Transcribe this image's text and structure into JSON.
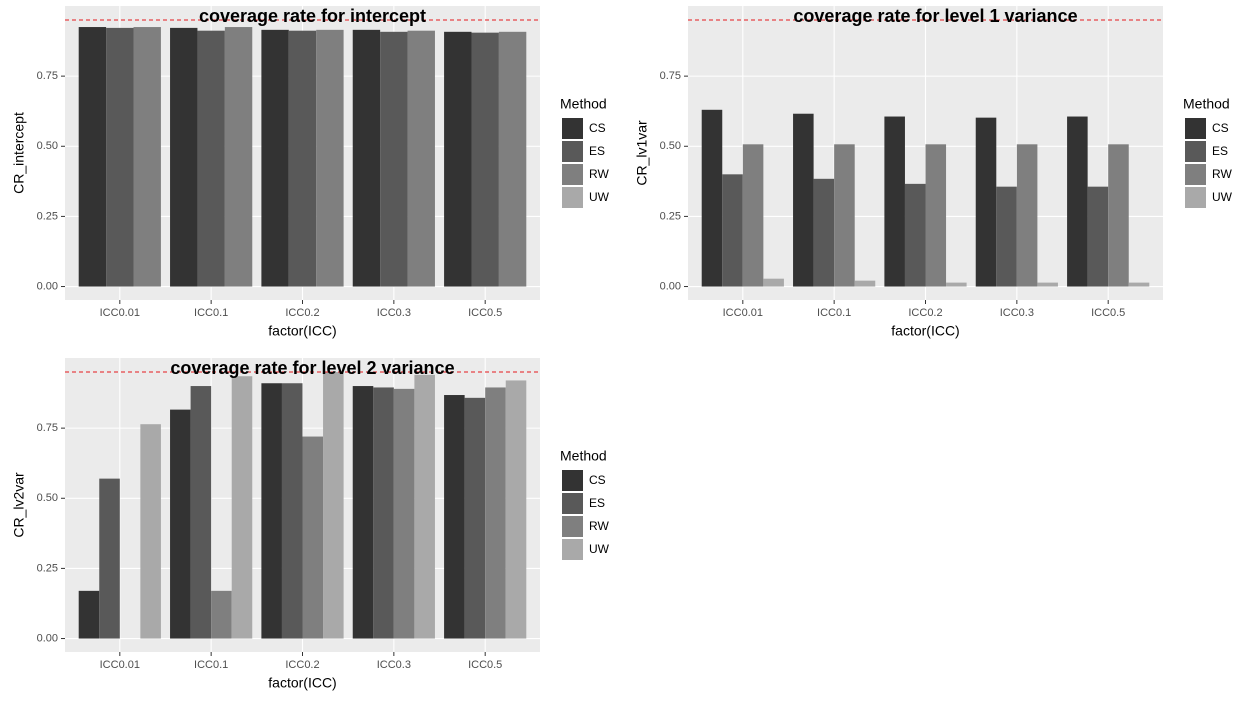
{
  "chart_data": [
    {
      "type": "bar",
      "title": "coverage rate for intercept",
      "x_label": "factor(ICC)",
      "y_label": "CR_intercept",
      "legend_title": "Method",
      "categories": [
        "ICC0.01",
        "ICC0.1",
        "ICC0.2",
        "ICC0.3",
        "ICC0.5"
      ],
      "series": [
        {
          "name": "CS",
          "color": "#333333",
          "values": [
            0.925,
            0.922,
            0.915,
            0.915,
            0.908
          ]
        },
        {
          "name": "ES",
          "color": "#595959",
          "values": [
            0.922,
            0.912,
            0.912,
            0.908,
            0.905
          ]
        },
        {
          "name": "RW",
          "color": "#7f7f7f",
          "values": [
            0.925,
            0.925,
            0.915,
            0.912,
            0.908
          ]
        },
        {
          "name": "UW",
          "color": "#a9a9a9",
          "values": [
            null,
            null,
            null,
            null,
            null
          ]
        }
      ],
      "reference_line": 0.95,
      "reference_color": "#e41a1c",
      "ylim": [
        -0.048,
        1.0
      ],
      "yticks": [
        {
          "value": 0,
          "label": "0.00"
        },
        {
          "value": 0.25,
          "label": "0.25"
        },
        {
          "value": 0.5,
          "label": "0.50"
        },
        {
          "value": 0.75,
          "label": "0.75"
        }
      ],
      "grid": true
    },
    {
      "type": "bar",
      "title": "coverage rate for level 1 variance",
      "x_label": "factor(ICC)",
      "y_label": "CR_lv1var",
      "legend_title": "Method",
      "categories": [
        "ICC0.01",
        "ICC0.1",
        "ICC0.2",
        "ICC0.3",
        "ICC0.5"
      ],
      "series": [
        {
          "name": "CS",
          "color": "#333333",
          "values": [
            0.63,
            0.616,
            0.606,
            0.602,
            0.606
          ]
        },
        {
          "name": "ES",
          "color": "#595959",
          "values": [
            0.4,
            0.384,
            0.366,
            0.356,
            0.356
          ]
        },
        {
          "name": "RW",
          "color": "#7f7f7f",
          "values": [
            0.507,
            0.507,
            0.507,
            0.507,
            0.507
          ]
        },
        {
          "name": "UW",
          "color": "#a9a9a9",
          "values": [
            0.028,
            0.021,
            0.014,
            0.014,
            0.014
          ]
        }
      ],
      "reference_line": 0.95,
      "reference_color": "#e41a1c",
      "ylim": [
        -0.048,
        1.0
      ],
      "yticks": [
        {
          "value": 0,
          "label": "0.00"
        },
        {
          "value": 0.25,
          "label": "0.25"
        },
        {
          "value": 0.5,
          "label": "0.50"
        },
        {
          "value": 0.75,
          "label": "0.75"
        }
      ],
      "grid": true
    },
    {
      "type": "bar",
      "title": "coverage rate for level 2 variance",
      "x_label": "factor(ICC)",
      "y_label": "CR_lv2var",
      "legend_title": "Method",
      "categories": [
        "ICC0.01",
        "ICC0.1",
        "ICC0.2",
        "ICC0.3",
        "ICC0.5"
      ],
      "series": [
        {
          "name": "CS",
          "color": "#333333",
          "values": [
            0.17,
            0.816,
            0.91,
            0.9,
            0.868
          ]
        },
        {
          "name": "ES",
          "color": "#595959",
          "values": [
            0.57,
            0.9,
            0.91,
            0.895,
            0.858
          ]
        },
        {
          "name": "RW",
          "color": "#7f7f7f",
          "values": [
            null,
            0.17,
            0.72,
            0.89,
            0.895
          ]
        },
        {
          "name": "UW",
          "color": "#a9a9a9",
          "values": [
            0.764,
            0.935,
            0.95,
            0.94,
            0.92
          ]
        }
      ],
      "reference_line": 0.95,
      "reference_color": "#e41a1c",
      "ylim": [
        -0.048,
        1.0
      ],
      "yticks": [
        {
          "value": 0,
          "label": "0.00"
        },
        {
          "value": 0.25,
          "label": "0.25"
        },
        {
          "value": 0.5,
          "label": "0.50"
        },
        {
          "value": 0.75,
          "label": "0.75"
        }
      ],
      "grid": true
    }
  ]
}
